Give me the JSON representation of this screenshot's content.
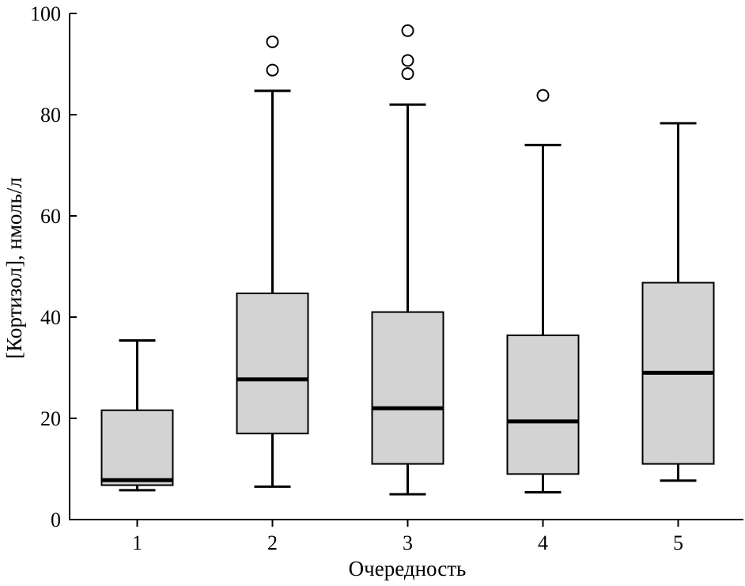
{
  "chart_data": {
    "type": "box",
    "xlabel": "Очередность",
    "ylabel": "[Кортизол], нмоль/л",
    "ylim": [
      0,
      100
    ],
    "yticks": [
      "0",
      "20",
      "40",
      "60",
      "80",
      "100"
    ],
    "categories": [
      "1",
      "2",
      "3",
      "4",
      "5"
    ],
    "boxes": [
      {
        "category": "1",
        "whisker_low": 5.8,
        "q1": 6.8,
        "median": 7.8,
        "q3": 21.6,
        "whisker_high": 35.4,
        "outliers": []
      },
      {
        "category": "2",
        "whisker_low": 6.5,
        "q1": 17.0,
        "median": 27.7,
        "q3": 44.7,
        "whisker_high": 84.7,
        "outliers": [
          88.8,
          94.4
        ]
      },
      {
        "category": "3",
        "whisker_low": 5.0,
        "q1": 11.0,
        "median": 22.0,
        "q3": 41.0,
        "whisker_high": 82.0,
        "outliers": [
          88.1,
          90.7,
          96.6
        ]
      },
      {
        "category": "4",
        "whisker_low": 5.4,
        "q1": 9.0,
        "median": 19.4,
        "q3": 36.4,
        "whisker_high": 74.0,
        "outliers": [
          83.8
        ]
      },
      {
        "category": "5",
        "whisker_low": 7.7,
        "q1": 11.0,
        "median": 29.0,
        "q3": 46.8,
        "whisker_high": 78.3,
        "outliers": []
      }
    ],
    "grid": false,
    "colors": {
      "box_fill": "#d3d3d3",
      "stroke": "#000000"
    }
  }
}
